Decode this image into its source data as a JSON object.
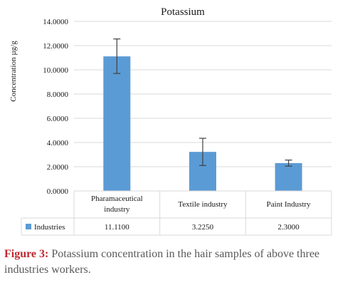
{
  "chart_data": {
    "type": "bar",
    "title": "Potassium",
    "ylabel": "Concentration µg/g",
    "xlabel": "",
    "ylim": [
      0,
      14
    ],
    "yticks": [
      "0.0000",
      "2.0000",
      "4.0000",
      "6.0000",
      "8.0000",
      "10.0000",
      "12.0000",
      "14.0000"
    ],
    "grid": true,
    "categories": [
      "Pharamaceutical industry",
      "Textile industry",
      "Paint Industry"
    ],
    "series": [
      {
        "name": "Industries",
        "values": [
          11.11,
          3.225,
          2.3
        ],
        "error_low": [
          9.7,
          2.1,
          2.05
        ],
        "error_high": [
          12.55,
          4.35,
          2.55
        ],
        "color": "#5b9bd5"
      }
    ],
    "data_table": {
      "row_label": "Industries",
      "cells": [
        "11.1100",
        "3.2250",
        "2.3000"
      ]
    }
  },
  "caption": {
    "label": "Figure 3:",
    "text": " Potassium concentration in the hair samples of above three industries workers."
  },
  "colors": {
    "bar": "#5b9bd5",
    "caption_label": "#c0282f",
    "caption_text": "#595959",
    "grid": "#d9d9d9"
  }
}
